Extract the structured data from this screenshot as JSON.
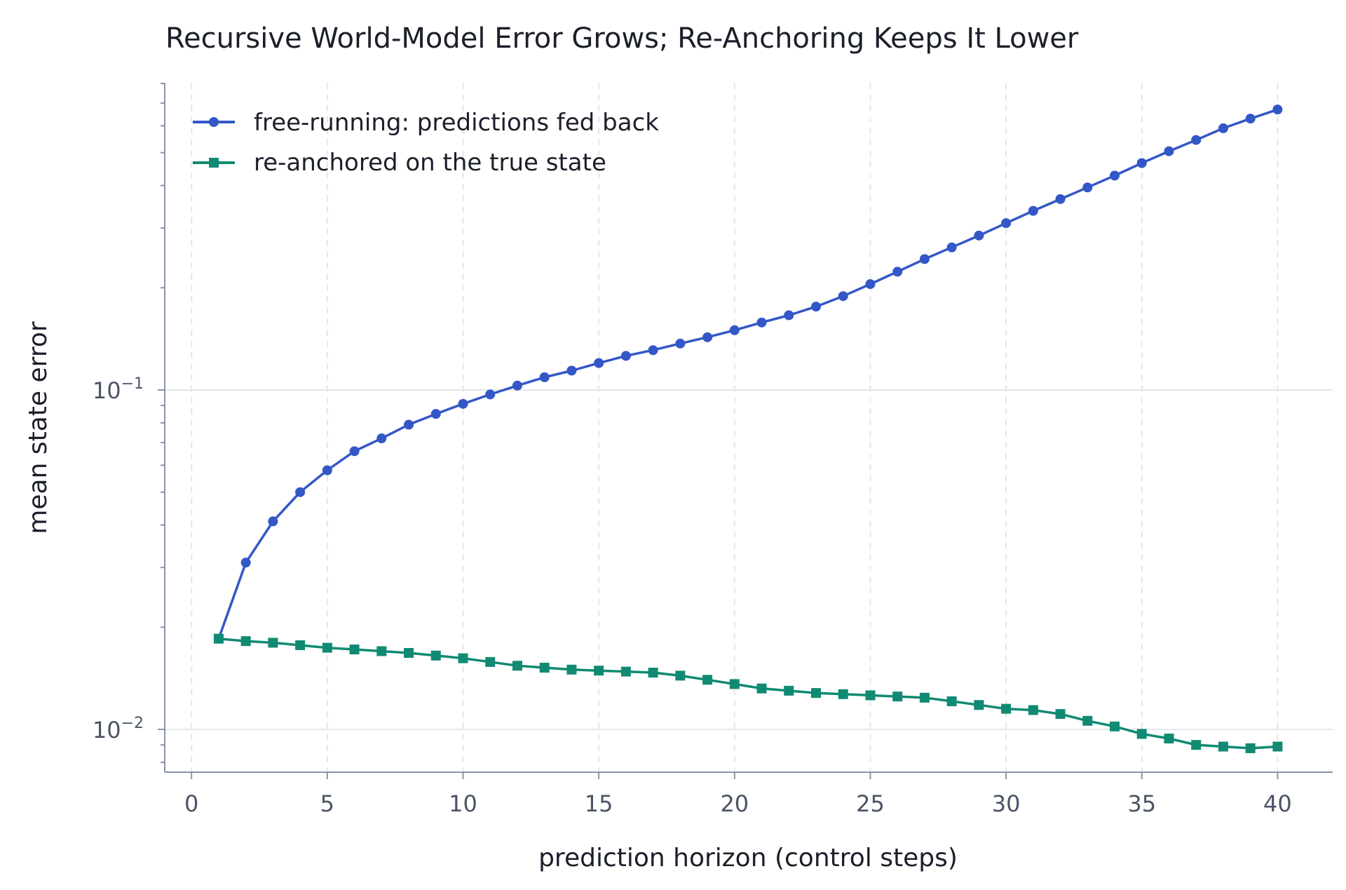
{
  "chart_data": {
    "type": "line",
    "title": "Recursive World-Model Error Grows; Re-Anchoring Keeps It Lower",
    "xlabel": "prediction horizon (control steps)",
    "ylabel": "mean state error",
    "yscale": "log",
    "xlim": [
      -1,
      42
    ],
    "ylim": [
      0.0077,
      1.0
    ],
    "x_ticks": [
      0,
      5,
      10,
      15,
      20,
      25,
      30,
      35,
      40
    ],
    "x_tick_labels": [
      "0",
      "5",
      "10",
      "15",
      "20",
      "25",
      "30",
      "35",
      "40"
    ],
    "y_major_ticks": [
      0.01,
      0.1
    ],
    "y_tick_labels": [
      {
        "base": "10",
        "exp": "−2"
      },
      {
        "base": "10",
        "exp": "−1"
      }
    ],
    "grid": true,
    "legend_position": "top-left",
    "x": [
      1,
      2,
      3,
      4,
      5,
      6,
      7,
      8,
      9,
      10,
      11,
      12,
      13,
      14,
      15,
      16,
      17,
      18,
      19,
      20,
      21,
      22,
      23,
      24,
      25,
      26,
      27,
      28,
      29,
      30,
      31,
      32,
      33,
      34,
      35,
      36,
      37,
      38,
      39,
      40
    ],
    "series": [
      {
        "name": "free-running: predictions fed back",
        "color": "#3457c7",
        "marker": "circle",
        "values": [
          0.0185,
          0.031,
          0.041,
          0.05,
          0.058,
          0.066,
          0.072,
          0.079,
          0.085,
          0.091,
          0.097,
          0.103,
          0.109,
          0.114,
          0.12,
          0.126,
          0.131,
          0.137,
          0.143,
          0.15,
          0.158,
          0.166,
          0.176,
          0.189,
          0.205,
          0.223,
          0.243,
          0.263,
          0.285,
          0.31,
          0.337,
          0.365,
          0.395,
          0.428,
          0.466,
          0.505,
          0.545,
          0.59,
          0.63,
          0.67
        ]
      },
      {
        "name": "re-anchored on the true state",
        "color": "#118a73",
        "marker": "square",
        "values": [
          0.0185,
          0.0182,
          0.018,
          0.0177,
          0.0174,
          0.0172,
          0.017,
          0.0168,
          0.0165,
          0.0162,
          0.0158,
          0.0154,
          0.0152,
          0.015,
          0.0149,
          0.0148,
          0.0147,
          0.0144,
          0.014,
          0.0136,
          0.0132,
          0.013,
          0.0128,
          0.0127,
          0.0126,
          0.0125,
          0.0124,
          0.0121,
          0.0118,
          0.0115,
          0.0114,
          0.0111,
          0.0106,
          0.0102,
          0.0097,
          0.0094,
          0.009,
          0.0089,
          0.0088,
          0.0089
        ]
      }
    ]
  }
}
